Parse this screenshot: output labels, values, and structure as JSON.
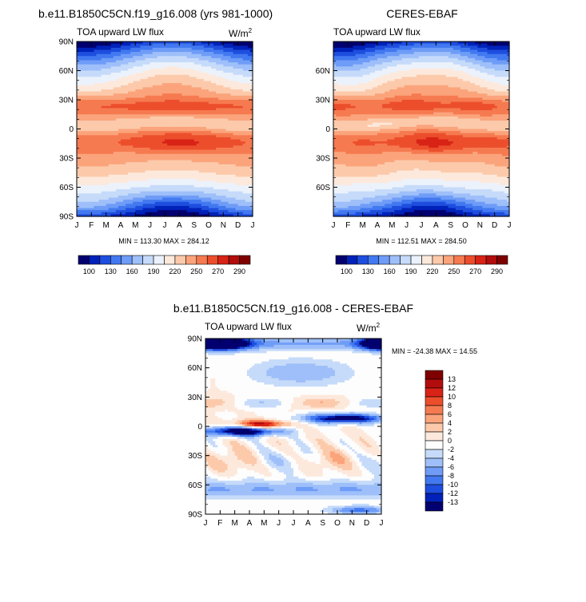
{
  "chart_data": [
    {
      "type": "heatmap",
      "title": "b.e11.B1850C5CN.f19_g16.008 (yrs 981-1000)",
      "subtitle_left": "TOA upward LW flux",
      "units": "W/m",
      "units_sup": "2",
      "x_ticks": [
        "J",
        "F",
        "M",
        "A",
        "M",
        "J",
        "J",
        "A",
        "S",
        "O",
        "N",
        "D",
        "J"
      ],
      "y_ticks": [
        "90N",
        "60N",
        "30N",
        "0",
        "30S",
        "60S",
        "90S"
      ],
      "stats": "MIN = 113.30 MAX = 284.12",
      "colorbar": {
        "orientation": "horizontal",
        "labels": [
          "100",
          "130",
          "160",
          "190",
          "220",
          "250",
          "270",
          "290"
        ],
        "colors": [
          "#03006f",
          "#0022b8",
          "#1e4ede",
          "#4279f0",
          "#6e9cf7",
          "#9ebff9",
          "#c6dbfa",
          "#ebf2fb",
          "#fde9dc",
          "#fccaab",
          "#fba47c",
          "#f67a50",
          "#ec4e2c",
          "#d82316",
          "#b30c0c",
          "#7f0000"
        ]
      },
      "field": "mean_lw",
      "colormap": "abs",
      "value_range": [
        113.3,
        284.12
      ]
    },
    {
      "type": "heatmap",
      "title": "CERES-EBAF",
      "subtitle_left": "TOA upward LW flux",
      "units": "W/m",
      "units_sup": "2",
      "x_ticks": [
        "J",
        "F",
        "M",
        "A",
        "M",
        "J",
        "J",
        "A",
        "S",
        "O",
        "N",
        "D",
        "J"
      ],
      "y_ticks": [
        "",
        "60N",
        "30N",
        "0",
        "30S",
        "60S",
        ""
      ],
      "stats": "MIN = 112.51 MAX = 284.50",
      "colorbar": {
        "orientation": "horizontal",
        "labels": [
          "100",
          "130",
          "160",
          "190",
          "220",
          "250",
          "270",
          "290"
        ],
        "colors": [
          "#03006f",
          "#0022b8",
          "#1e4ede",
          "#4279f0",
          "#6e9cf7",
          "#9ebff9",
          "#c6dbfa",
          "#ebf2fb",
          "#fde9dc",
          "#fccaab",
          "#fba47c",
          "#f67a50",
          "#ec4e2c",
          "#d82316",
          "#b30c0c",
          "#7f0000"
        ]
      },
      "field": "obs_lw",
      "colormap": "abs",
      "value_range": [
        112.51,
        284.5
      ]
    },
    {
      "type": "heatmap",
      "title": "b.e11.B1850C5CN.f19_g16.008 - CERES-EBAF",
      "subtitle_left": "TOA upward LW flux",
      "units": "W/m",
      "units_sup": "2",
      "x_ticks": [
        "J",
        "F",
        "M",
        "A",
        "M",
        "J",
        "J",
        "A",
        "S",
        "O",
        "N",
        "D",
        "J"
      ],
      "y_ticks": [
        "90N",
        "60N",
        "30N",
        "0",
        "30S",
        "60S",
        "90S"
      ],
      "stats": "MIN = -24.38 MAX =  14.55",
      "colorbar": {
        "orientation": "vertical",
        "labels": [
          "13",
          "12",
          "10",
          "8",
          "6",
          "4",
          "2",
          "0",
          "-2",
          "-4",
          "-6",
          "-8",
          "-10",
          "-12",
          "-13"
        ],
        "colors": [
          "#7f0000",
          "#b30c0c",
          "#d82316",
          "#ec4e2c",
          "#f67a50",
          "#fba47c",
          "#fccaab",
          "#fde9dc",
          "#fdfdfd",
          "#c6dbfa",
          "#9ebff9",
          "#6e9cf7",
          "#4279f0",
          "#1e4ede",
          "#0022b8",
          "#03006f"
        ]
      },
      "field": "diff_lw",
      "colormap": "diff",
      "value_range": [
        -24.38,
        14.55
      ]
    }
  ]
}
